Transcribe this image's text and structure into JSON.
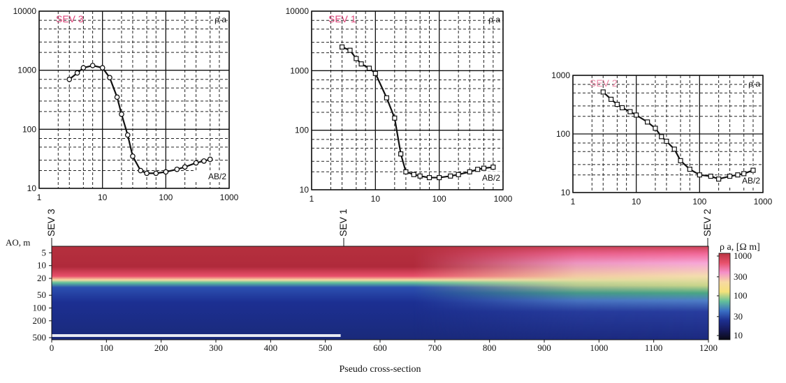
{
  "chart_data": [
    {
      "type": "line",
      "title": "SEV 3",
      "ylabel": "ρ a",
      "xlabel": "AB/2",
      "xscale": "log",
      "yscale": "log",
      "xlim": [
        1,
        1000
      ],
      "ylim": [
        10,
        10000
      ],
      "xticks": [
        "1",
        "10",
        "100",
        "1000"
      ],
      "yticks": [
        "10",
        "100",
        "1000",
        "10000"
      ],
      "grid": true,
      "x": [
        3,
        4,
        5,
        7,
        10,
        13,
        17,
        20,
        25,
        30,
        40,
        50,
        70,
        100,
        150,
        200,
        300,
        400,
        500
      ],
      "y": [
        700,
        900,
        1100,
        1200,
        1100,
        750,
        350,
        180,
        80,
        35,
        20,
        18,
        18,
        19,
        21,
        23,
        27,
        29,
        31
      ]
    },
    {
      "type": "line",
      "title": "SEV 1",
      "ylabel": "ρ a",
      "xlabel": "AB/2",
      "xscale": "log",
      "yscale": "log",
      "xlim": [
        1,
        1000
      ],
      "ylim": [
        10,
        10000
      ],
      "xticks": [
        "1",
        "10",
        "100",
        "1000"
      ],
      "yticks": [
        "10",
        "100",
        "1000",
        "10000"
      ],
      "grid": true,
      "x": [
        3,
        4,
        5,
        6,
        8,
        10,
        15,
        20,
        25,
        30,
        40,
        50,
        70,
        100,
        150,
        200,
        300,
        400,
        500,
        700
      ],
      "y": [
        2500,
        2200,
        1600,
        1300,
        1100,
        900,
        350,
        160,
        40,
        20,
        18,
        17,
        16,
        16,
        17,
        18,
        20,
        22,
        23,
        24
      ]
    },
    {
      "type": "line",
      "title": "SEV 2",
      "ylabel": "ρ a",
      "xlabel": "AB/2",
      "xscale": "log",
      "yscale": "log",
      "xlim": [
        1,
        1000
      ],
      "ylim": [
        10,
        1000
      ],
      "xticks": [
        "1",
        "10",
        "100",
        "1000"
      ],
      "yticks": [
        "10",
        "100",
        "1000"
      ],
      "grid": true,
      "x": [
        3,
        4,
        5,
        6,
        8,
        10,
        15,
        20,
        25,
        30,
        40,
        50,
        70,
        100,
        150,
        200,
        300,
        400,
        500,
        700
      ],
      "y": [
        520,
        390,
        320,
        280,
        240,
        210,
        160,
        125,
        90,
        75,
        55,
        35,
        25,
        20,
        19,
        17,
        19,
        20,
        21,
        24
      ]
    },
    {
      "type": "heatmap",
      "title": "",
      "xlabel": "Pseudo cross-section",
      "ylabel": "AO, m",
      "x_ticks": [
        "0",
        "100",
        "200",
        "300",
        "400",
        "500",
        "600",
        "700",
        "800",
        "900",
        "1000",
        "1100",
        "1200"
      ],
      "y_ticks": [
        "5",
        "10",
        "20",
        "50",
        "100",
        "200",
        "500"
      ],
      "colorbar_title": "ρ a, [Ω m]",
      "colorbar_ticks": [
        "1000",
        "300",
        "100",
        "30",
        "10"
      ],
      "sev_labels": [
        {
          "name": "SEV 3",
          "x": 0
        },
        {
          "name": "SEV 1",
          "x": 530
        },
        {
          "name": "SEV 2",
          "x": 1200
        }
      ],
      "colorscale": [
        "#b83441",
        "#e8506b",
        "#f48fc8",
        "#f7d9a2",
        "#f5e17a",
        "#62c09a",
        "#3a6fc4",
        "#1d2f8f",
        "#161a5a",
        "#0a0a14"
      ]
    }
  ]
}
